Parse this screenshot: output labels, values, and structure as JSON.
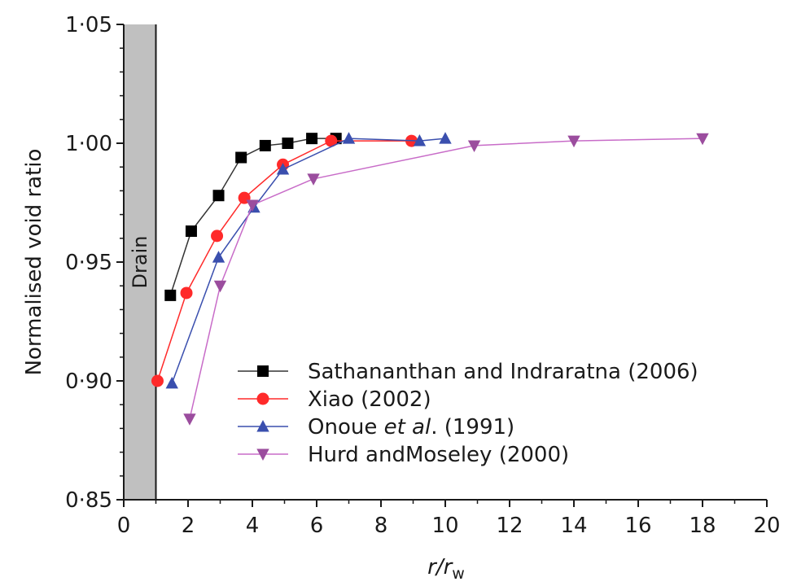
{
  "chart_data": {
    "type": "line",
    "title": "",
    "xlabel": {
      "main": "r/r",
      "sub": "w"
    },
    "ylabel": "Normalised void ratio",
    "xlim": [
      0,
      20
    ],
    "ylim": [
      0.85,
      1.05
    ],
    "xticks": [
      0,
      2,
      4,
      6,
      8,
      10,
      12,
      14,
      16,
      18,
      20
    ],
    "xtick_labels": [
      "0",
      "2",
      "4",
      "6",
      "8",
      "10",
      "12",
      "14",
      "16",
      "18",
      "20"
    ],
    "yticks": [
      0.85,
      0.9,
      0.95,
      1.0,
      1.05
    ],
    "ytick_labels": [
      "0·85",
      "0·90",
      "0·95",
      "1·00",
      "1·05"
    ],
    "grid": false,
    "legend_position": "lower-right",
    "drain": {
      "label": "Drain",
      "x_range": [
        0,
        1
      ],
      "color": "#c0c0c0"
    },
    "series": [
      {
        "name": "Sathananthan and Indraratna (2006)",
        "name_parts": [
          {
            "text": "Sathananthan and Indraratna (2006)",
            "italic": false
          }
        ],
        "marker": "square",
        "color": "#000000",
        "line_color": "#333333",
        "x": [
          1.45,
          2.1,
          2.95,
          3.65,
          4.4,
          5.1,
          5.85,
          6.6
        ],
        "y": [
          0.936,
          0.963,
          0.978,
          0.994,
          0.999,
          1.0,
          1.002,
          1.002
        ]
      },
      {
        "name": "Xiao (2002)",
        "name_parts": [
          {
            "text": "Xiao (2002)",
            "italic": false
          }
        ],
        "marker": "circle",
        "color": "#ff2a2a",
        "line_color": "#ff2a2a",
        "x": [
          1.05,
          1.95,
          2.9,
          3.75,
          4.95,
          6.45,
          8.95
        ],
        "y": [
          0.9,
          0.937,
          0.961,
          0.977,
          0.991,
          1.001,
          1.001
        ]
      },
      {
        "name": "Onoue et al. (1991)",
        "name_parts": [
          {
            "text": "Onoue ",
            "italic": false
          },
          {
            "text": "et al",
            "italic": true
          },
          {
            "text": ". (1991)",
            "italic": false
          }
        ],
        "marker": "triangle-up",
        "color": "#3a4fae",
        "line_color": "#3a4fae",
        "x": [
          1.5,
          2.95,
          4.05,
          4.95,
          7.0,
          9.2,
          10.0
        ],
        "y": [
          0.899,
          0.952,
          0.973,
          0.989,
          1.002,
          1.001,
          1.002
        ]
      },
      {
        "name": "Hurd andMoseley (2000)",
        "name_parts": [
          {
            "text": "Hurd andMoseley (2000)",
            "italic": false
          }
        ],
        "marker": "triangle-down",
        "color": "#9b4d9e",
        "line_color": "#c86cc8",
        "x": [
          2.05,
          3.0,
          4.0,
          5.9,
          10.9,
          14.0,
          18.0
        ],
        "y": [
          0.884,
          0.94,
          0.974,
          0.985,
          0.999,
          1.001,
          1.002
        ]
      }
    ]
  }
}
